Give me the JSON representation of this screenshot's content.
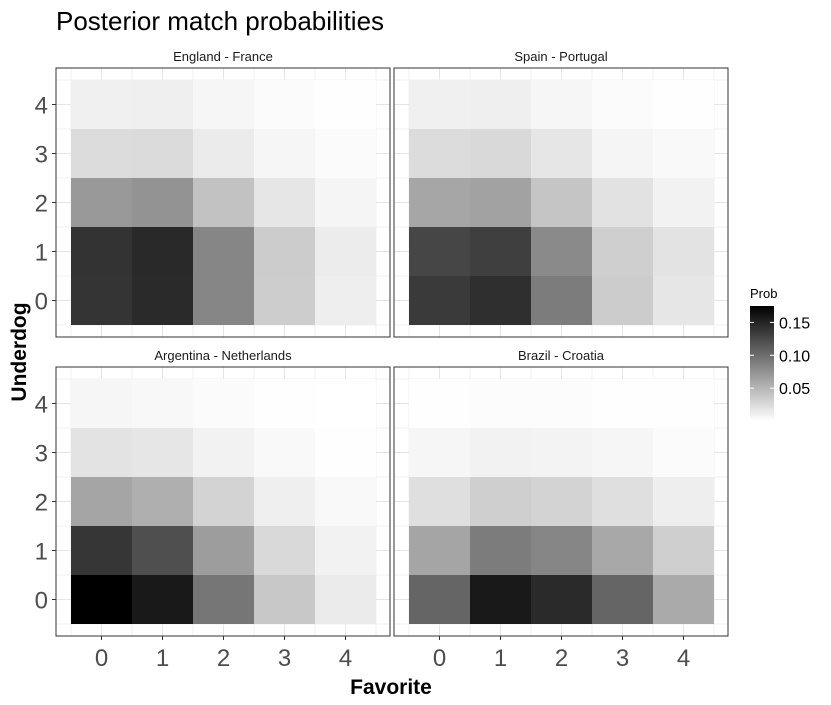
{
  "chart_data": {
    "type": "heatmap",
    "title": "Posterior match probabilities",
    "xlabel": "Favorite",
    "ylabel": "Underdog",
    "x_ticks": [
      "0",
      "1",
      "2",
      "3",
      "4"
    ],
    "y_ticks": [
      "0",
      "1",
      "2",
      "3",
      "4"
    ],
    "legend": {
      "title": "Prob",
      "ticks": [
        "0.05",
        "0.10",
        "0.15"
      ],
      "tick_values": [
        0.05,
        0.1,
        0.15
      ],
      "range": [
        0.0,
        0.175
      ],
      "low_color": "#ffffff",
      "high_color": "#000000",
      "placement": "right"
    },
    "grid": true,
    "panels": [
      {
        "name": "England - France",
        "values_by_underdog": [
          [
            0.139,
            0.146,
            0.083,
            0.034,
            0.012
          ],
          [
            0.14,
            0.147,
            0.083,
            0.035,
            0.013
          ],
          [
            0.07,
            0.074,
            0.042,
            0.017,
            0.007
          ],
          [
            0.024,
            0.025,
            0.014,
            0.006,
            0.003
          ],
          [
            0.01,
            0.011,
            0.006,
            0.003,
            0.001
          ]
        ]
      },
      {
        "name": "Spain - Portugal",
        "values_by_underdog": [
          [
            0.135,
            0.143,
            0.09,
            0.035,
            0.017
          ],
          [
            0.127,
            0.132,
            0.08,
            0.033,
            0.019
          ],
          [
            0.061,
            0.064,
            0.04,
            0.02,
            0.009
          ],
          [
            0.024,
            0.026,
            0.017,
            0.007,
            0.004
          ],
          [
            0.01,
            0.011,
            0.006,
            0.003,
            0.001
          ]
        ]
      },
      {
        "name": "Argentina - Netherlands",
        "values_by_underdog": [
          [
            0.175,
            0.158,
            0.094,
            0.038,
            0.014
          ],
          [
            0.138,
            0.121,
            0.067,
            0.026,
            0.009
          ],
          [
            0.062,
            0.055,
            0.03,
            0.011,
            0.004
          ],
          [
            0.019,
            0.017,
            0.009,
            0.004,
            0.001
          ],
          [
            0.006,
            0.005,
            0.003,
            0.001,
            0.0
          ]
        ]
      },
      {
        "name": "Brazil - Croatia",
        "values_by_underdog": [
          [
            0.106,
            0.158,
            0.146,
            0.106,
            0.058
          ],
          [
            0.062,
            0.09,
            0.083,
            0.06,
            0.033
          ],
          [
            0.022,
            0.033,
            0.03,
            0.022,
            0.012
          ],
          [
            0.006,
            0.009,
            0.008,
            0.006,
            0.003
          ],
          [
            0.001,
            0.002,
            0.002,
            0.001,
            0.001
          ]
        ]
      }
    ]
  }
}
